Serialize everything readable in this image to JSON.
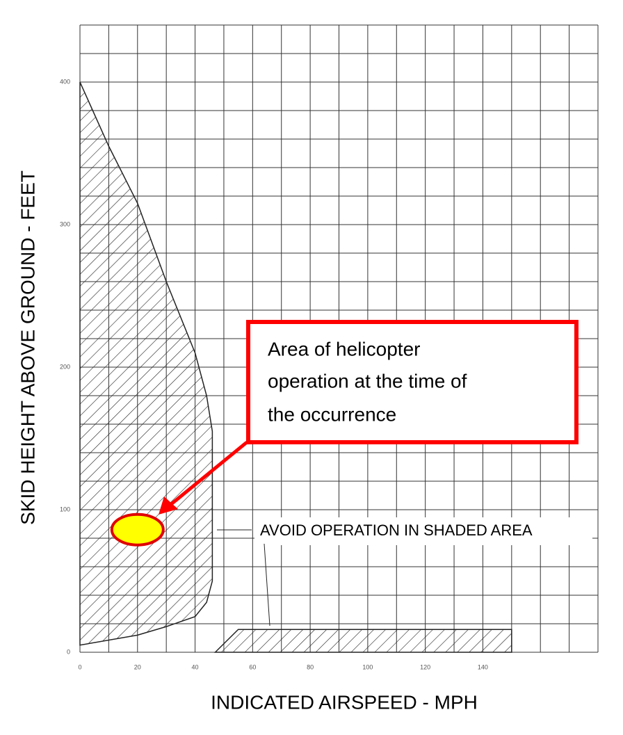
{
  "chart_data": {
    "type": "area",
    "ylabel": "SKID HEIGHT ABOVE GROUND - FEET",
    "xlabel": "INDICATED AIRSPEED - MPH",
    "xlim": [
      0,
      180
    ],
    "ylim": [
      0,
      440
    ],
    "xticks": [
      0,
      20,
      40,
      60,
      80,
      100,
      120,
      140
    ],
    "yticks": [
      0,
      100,
      200,
      300,
      400
    ],
    "xgrid": [
      0,
      10,
      20,
      30,
      40,
      50,
      60,
      70,
      80,
      90,
      100,
      110,
      120,
      130,
      140,
      150,
      160,
      170,
      180
    ],
    "ygrid": [
      0,
      20,
      40,
      60,
      80,
      100,
      120,
      140,
      160,
      180,
      200,
      220,
      240,
      260,
      280,
      300,
      320,
      340,
      360,
      380,
      400,
      420,
      440
    ],
    "grid": true,
    "regions": [
      {
        "x": [
          0,
          10,
          20,
          30,
          40,
          44,
          46,
          46,
          44,
          40,
          30,
          20,
          0
        ],
        "y": [
          400,
          355,
          315,
          260,
          210,
          180,
          155,
          50,
          35,
          25,
          18,
          12,
          5
        ]
      },
      {
        "x": [
          47,
          55,
          150,
          150
        ],
        "y": [
          0,
          16,
          16,
          0
        ]
      }
    ],
    "highlight": {
      "x": 20,
      "y": 86,
      "color": "#ffff00",
      "edge": "#e00000"
    },
    "annotation": "AVOID OPERATION IN SHADED AREA",
    "callout": [
      "Area of helicopter",
      "operation at the time of",
      "the occurrence"
    ]
  }
}
